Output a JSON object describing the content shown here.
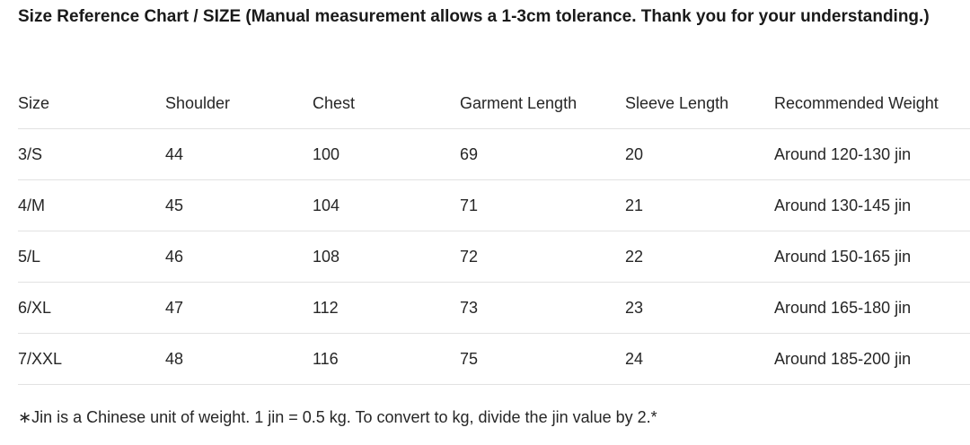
{
  "title": "Size Reference Chart / SIZE (Manual measurement allows a 1-3cm tolerance. Thank you for your understanding.)",
  "table": {
    "headers": [
      "Size",
      "Shoulder",
      "Chest",
      "Garment Length",
      "Sleeve Length",
      "Recommended Weight"
    ],
    "rows": [
      [
        "3/S",
        "44",
        "100",
        "69",
        "20",
        "Around 120-130 jin"
      ],
      [
        "4/M",
        "45",
        "104",
        "71",
        "21",
        "Around 130-145 jin"
      ],
      [
        "5/L",
        "46",
        "108",
        "72",
        "22",
        "Around 150-165 jin"
      ],
      [
        "6/XL",
        "47",
        "112",
        "73",
        "23",
        "Around 165-180 jin"
      ],
      [
        "7/XXL",
        "48",
        "116",
        "75",
        "24",
        "Around 185-200 jin"
      ]
    ]
  },
  "note": "∗Jin is a Chinese unit of weight. 1 jin = 0.5 kg. To convert to kg, divide the jin value by 2.*"
}
